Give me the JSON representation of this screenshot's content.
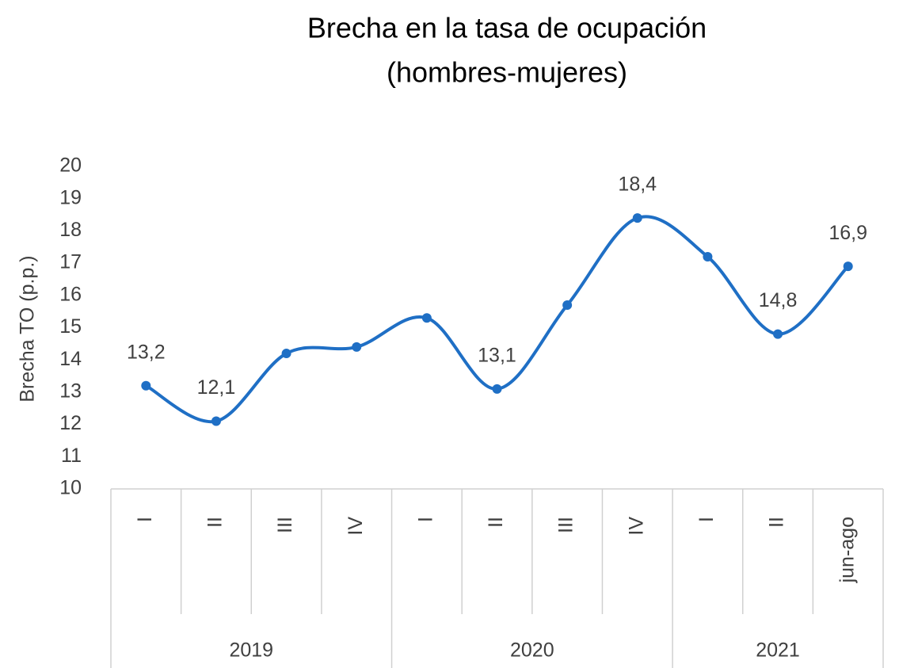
{
  "chart_data": {
    "type": "line",
    "title": [
      "Brecha en la tasa de ocupación",
      "(hombres-mujeres)"
    ],
    "y_label": "Brecha TO (p.p.)",
    "categories": [
      "I",
      "II",
      "III",
      "IV",
      "I",
      "II",
      "III",
      "IV",
      "I",
      "II",
      "jun-ago"
    ],
    "category_groups": [
      "2019",
      null,
      null,
      null,
      "2020",
      null,
      null,
      null,
      "2021",
      null,
      null
    ],
    "series": [
      {
        "name": "Brecha TO",
        "color": "#1f6fc5",
        "values": [
          13.2,
          12.1,
          14.2,
          14.4,
          15.3,
          13.1,
          15.7,
          18.4,
          17.2,
          14.8,
          16.9
        ],
        "value_labels": [
          "13,2",
          "12,1",
          null,
          null,
          null,
          "13,1",
          null,
          "18,4",
          null,
          "14,8",
          "16,9"
        ]
      }
    ],
    "ylim": [
      10,
      20
    ],
    "yticks": [
      10,
      11,
      12,
      13,
      14,
      15,
      16,
      17,
      18,
      19,
      20
    ],
    "smooth": true,
    "grid": false
  }
}
